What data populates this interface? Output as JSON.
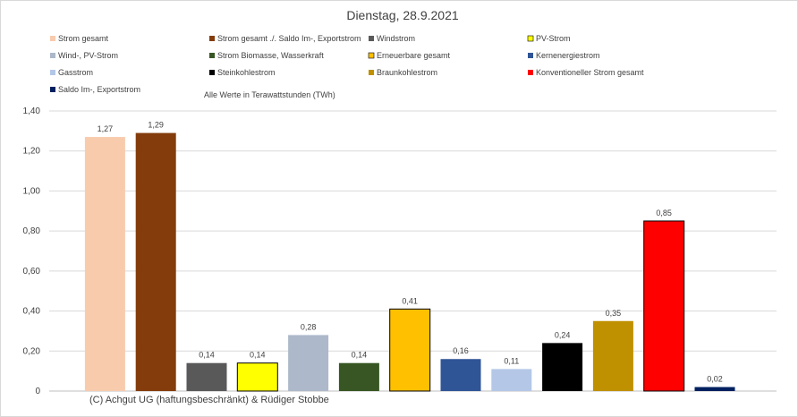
{
  "chart_data": {
    "type": "bar",
    "title": "Dienstag, 28.9.2021",
    "subtitle": "Alle Werte in Terawattstunden (TWh)",
    "copyright": "(C) Achgut UG (haftungsbeschränkt) & Rüdiger Stobbe",
    "ylim": [
      0,
      1.4
    ],
    "yticks": [
      "0",
      "0,20",
      "0,40",
      "0,60",
      "0,80",
      "1,00",
      "1,20",
      "1,40"
    ],
    "grid": true,
    "legend_position": "top",
    "series": [
      {
        "name": "Strom gesamt",
        "value": 1.27,
        "label": "1,27",
        "color": "#F8CBAD"
      },
      {
        "name": "Strom gesamt ./. Saldo Im-, Exportstrom",
        "value": 1.29,
        "label": "1,29",
        "color": "#843C0C"
      },
      {
        "name": "Windstrom",
        "value": 0.14,
        "label": "0,14",
        "color": "#595959"
      },
      {
        "name": "PV-Strom",
        "value": 0.14,
        "label": "0,14",
        "color": "#FFFF00"
      },
      {
        "name": "Wind-, PV-Strom",
        "value": 0.28,
        "label": "0,28",
        "color": "#ADB9CA"
      },
      {
        "name": "Strom Biomasse, Wasserkraft",
        "value": 0.14,
        "label": "0,14",
        "color": "#375623"
      },
      {
        "name": "Erneuerbare gesamt",
        "value": 0.41,
        "label": "0,41",
        "color": "#FFC000"
      },
      {
        "name": "Kernenergiestrom",
        "value": 0.16,
        "label": "0,16",
        "color": "#2F5597"
      },
      {
        "name": "Gasstrom",
        "value": 0.11,
        "label": "0,11",
        "color": "#B4C7E7"
      },
      {
        "name": "Steinkohlestrom",
        "value": 0.24,
        "label": "0,24",
        "color": "#000000"
      },
      {
        "name": "Braunkohlestrom",
        "value": 0.35,
        "label": "0,35",
        "color": "#BF9000"
      },
      {
        "name": "Konventioneller Strom gesamt",
        "value": 0.85,
        "label": "0,85",
        "color": "#FF0000"
      },
      {
        "name": "Saldo Im-, Exportstrom",
        "value": 0.02,
        "label": "0,02",
        "color": "#002060"
      }
    ]
  }
}
